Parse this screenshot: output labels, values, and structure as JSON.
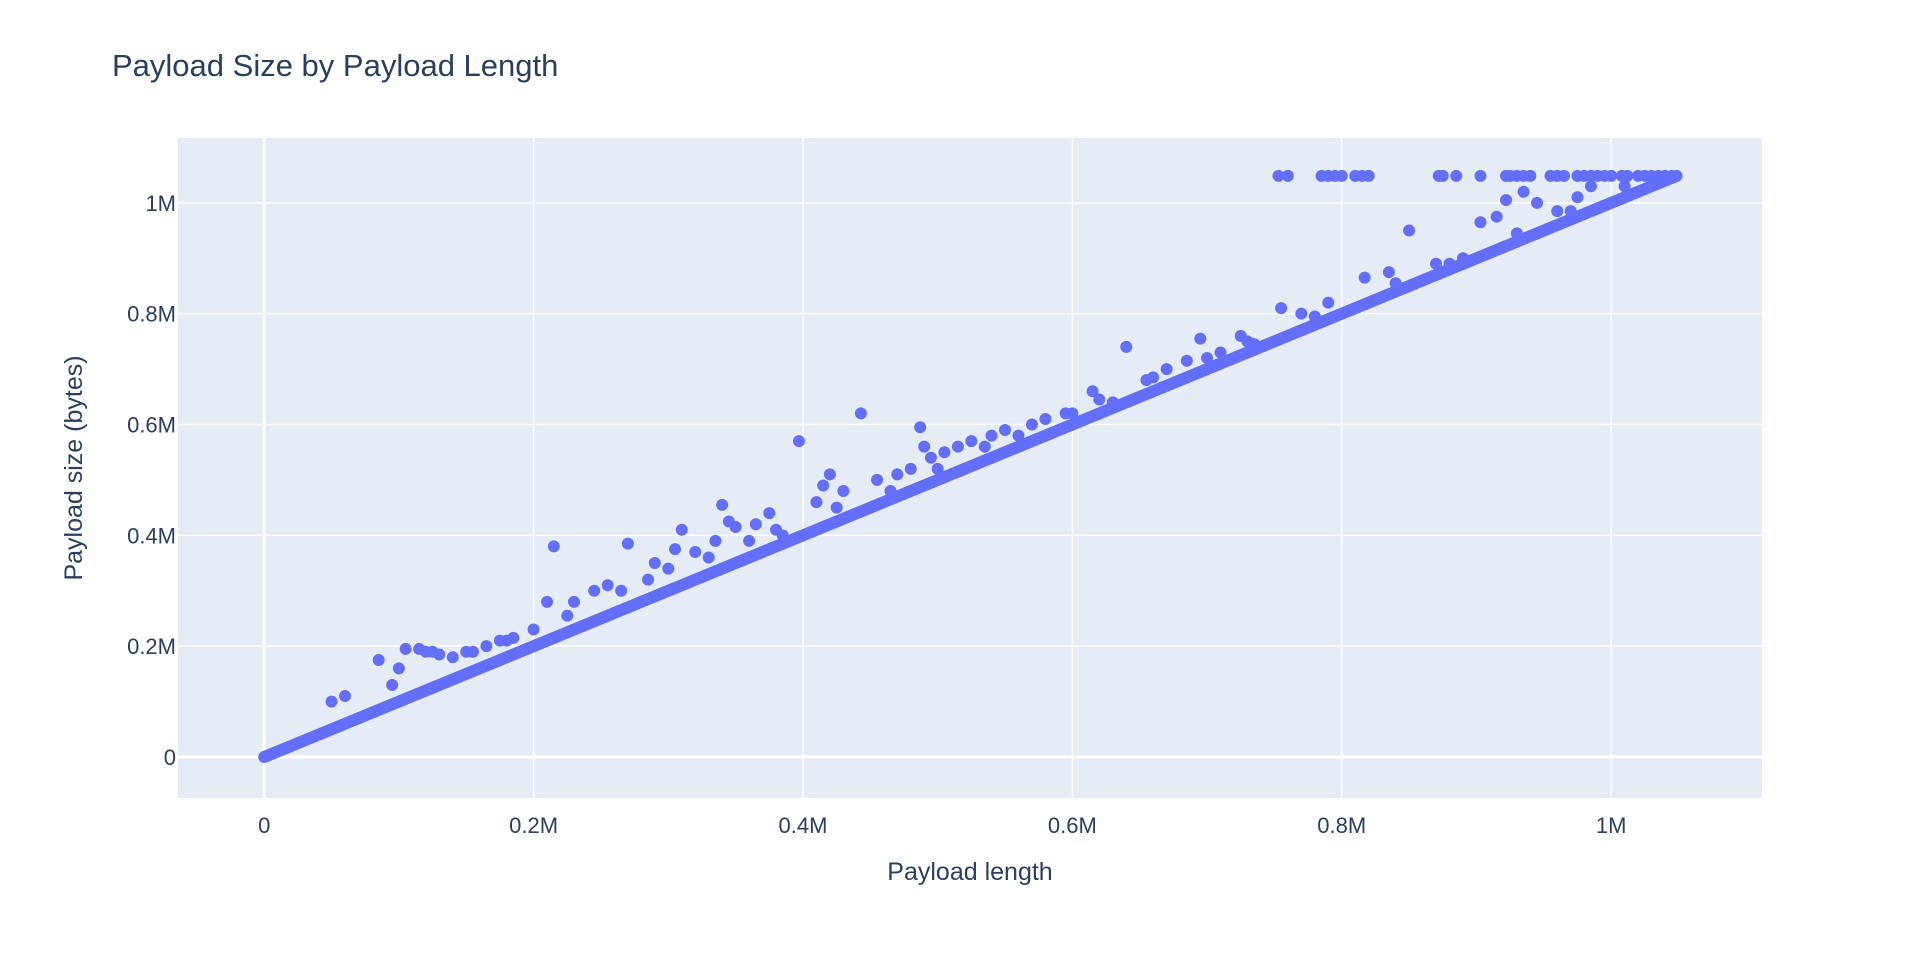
{
  "chart_data": {
    "type": "scatter",
    "title": "Payload Size by Payload Length",
    "xlabel": "Payload length",
    "ylabel": "Payload size (bytes)",
    "xlim": [
      -64000,
      1112000
    ],
    "ylim": [
      -74000,
      1117000
    ],
    "x_ticks": [
      0,
      200000,
      400000,
      600000,
      800000,
      1000000
    ],
    "x_tick_labels": [
      "0",
      "0.2M",
      "0.4M",
      "0.6M",
      "0.8M",
      "1M"
    ],
    "y_ticks": [
      0,
      200000,
      400000,
      600000,
      800000,
      1000000
    ],
    "y_tick_labels": [
      "0",
      "0.2M",
      "0.4M",
      "0.6M",
      "0.8M",
      "1M"
    ],
    "grid": true,
    "colors": {
      "marker": "#636efa",
      "plot_bg": "#e5ecf6",
      "grid": "#ffffff",
      "text": "#2a3f5f"
    },
    "series": [
      {
        "trend": {
          "x_start": 0,
          "x_end": 1048576,
          "slope": 1.0
        },
        "x": [
          85000,
          105000,
          115000,
          120000,
          125000,
          130000,
          140000,
          155000,
          165000,
          175000,
          185000,
          200000,
          215000,
          210000,
          230000,
          245000,
          255000,
          270000,
          285000,
          290000,
          305000,
          310000,
          320000,
          335000,
          340000,
          345000,
          350000,
          365000,
          375000,
          380000,
          397000,
          410000,
          415000,
          420000,
          430000,
          443000,
          455000,
          470000,
          480000,
          487000,
          490000,
          495000,
          505000,
          515000,
          525000,
          540000,
          550000,
          570000,
          580000,
          595000,
          615000,
          630000,
          640000,
          655000,
          670000,
          685000,
          695000,
          710000,
          725000,
          735000,
          755000,
          770000,
          790000,
          817000,
          835000,
          850000,
          870000,
          890000,
          903000,
          915000,
          922000,
          935000,
          945000,
          960000,
          975000,
          985000,
          760000,
          753000,
          785000,
          790000,
          795000,
          800000,
          810000,
          815000,
          820000,
          872000,
          875000,
          885000,
          903000,
          922000,
          925000,
          930000,
          935000,
          940000,
          955000,
          960000,
          965000,
          975000,
          980000,
          985000,
          990000,
          995000,
          1000000,
          1008000,
          1012000,
          1020000,
          1025000,
          1030000,
          1035000,
          1040000,
          1045000,
          50000,
          60000,
          95000,
          100000,
          150000,
          180000,
          225000,
          265000,
          300000,
          330000,
          360000,
          385000,
          425000,
          465000,
          500000,
          535000,
          560000,
          600000,
          620000,
          660000,
          700000,
          730000,
          780000,
          840000,
          880000,
          930000,
          970000,
          1010000
        ],
        "y": [
          175000,
          195000,
          195000,
          190000,
          190000,
          185000,
          180000,
          190000,
          200000,
          210000,
          215000,
          230000,
          380000,
          280000,
          280000,
          300000,
          310000,
          385000,
          320000,
          350000,
          375000,
          410000,
          370000,
          390000,
          455000,
          425000,
          415000,
          420000,
          440000,
          410000,
          570000,
          460000,
          490000,
          510000,
          480000,
          620000,
          500000,
          510000,
          520000,
          595000,
          560000,
          540000,
          550000,
          560000,
          570000,
          580000,
          590000,
          600000,
          610000,
          620000,
          660000,
          640000,
          740000,
          680000,
          700000,
          715000,
          755000,
          730000,
          760000,
          745000,
          810000,
          800000,
          820000,
          865000,
          875000,
          950000,
          890000,
          900000,
          965000,
          975000,
          1005000,
          1020000,
          1000000,
          985000,
          1010000,
          1030000,
          1048576,
          1048576,
          1048576,
          1048576,
          1048576,
          1048576,
          1048576,
          1048576,
          1048576,
          1048576,
          1048576,
          1048576,
          1048576,
          1048576,
          1048576,
          1048576,
          1048576,
          1048576,
          1048576,
          1048576,
          1048576,
          1048576,
          1048576,
          1048576,
          1048576,
          1048576,
          1048576,
          1048576,
          1048576,
          1048576,
          1048576,
          1048576,
          1048576,
          1048576,
          1048576,
          100000,
          110000,
          130000,
          160000,
          190000,
          210000,
          255000,
          300000,
          340000,
          360000,
          390000,
          400000,
          450000,
          480000,
          520000,
          560000,
          580000,
          620000,
          645000,
          685000,
          720000,
          750000,
          795000,
          855000,
          890000,
          945000,
          985000,
          1030000
        ]
      }
    ]
  }
}
